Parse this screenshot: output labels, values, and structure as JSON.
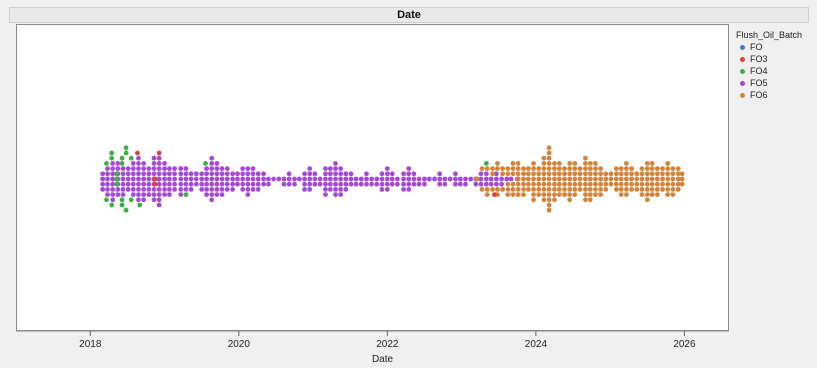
{
  "chart_data": {
    "type": "scatter",
    "title": "Date",
    "xlabel": "Date",
    "ylabel": "",
    "x_ticks": [
      "2018",
      "2020",
      "2022",
      "2024",
      "2026"
    ],
    "xlim": [
      2017.0,
      2026.6
    ],
    "legend": {
      "title": "Flush_Oil_Batch",
      "placement": "right",
      "entries": [
        {
          "name": "FO",
          "color": "#4a78c8"
        },
        {
          "name": "FO3",
          "color": "#e0403a"
        },
        {
          "name": "FO4",
          "color": "#3cb043"
        },
        {
          "name": "FO5",
          "color": "#a64ad6"
        },
        {
          "name": "FO6",
          "color": "#d4843a"
        }
      ]
    },
    "series": [
      {
        "name": "FO4",
        "color": "#3cb043",
        "x_dates": [
          "2018-03-20",
          "2018-04-15",
          "2018-05-10",
          "2018-06-05",
          "2018-06-25",
          "2018-07-20",
          "2018-09-01",
          "2019-04-15",
          "2019-07-20",
          "2023-05-01"
        ],
        "counts": [
          2,
          3,
          3,
          4,
          3,
          2,
          1,
          1,
          1,
          1
        ]
      },
      {
        "name": "FO3",
        "color": "#e0403a",
        "x_dates": [
          "2018-08-20",
          "2018-11-15",
          "2018-12-05",
          "2023-06-10"
        ],
        "counts": [
          1,
          2,
          1,
          1
        ]
      },
      {
        "name": "FO5",
        "color": "#a64ad6",
        "x_dates": [
          "2018-03-01",
          "2018-03-25",
          "2018-04-20",
          "2018-05-15",
          "2018-06-10",
          "2018-07-05",
          "2018-07-30",
          "2018-08-25",
          "2018-09-20",
          "2018-10-15",
          "2018-11-10",
          "2018-12-05",
          "2019-01-01",
          "2019-01-25",
          "2019-02-20",
          "2019-03-20",
          "2019-04-15",
          "2019-05-10",
          "2019-06-05",
          "2019-07-01",
          "2019-07-25",
          "2019-08-20",
          "2019-09-15",
          "2019-10-10",
          "2019-11-05",
          "2019-12-01",
          "2019-12-25",
          "2020-01-20",
          "2020-02-15",
          "2020-03-10",
          "2020-04-05",
          "2020-05-01",
          "2020-05-25",
          "2020-06-20",
          "2020-07-15",
          "2020-08-10",
          "2020-09-05",
          "2020-10-01",
          "2020-10-25",
          "2020-11-20",
          "2020-12-15",
          "2021-01-10",
          "2021-02-05",
          "2021-03-01",
          "2021-03-25",
          "2021-04-20",
          "2021-05-15",
          "2021-06-10",
          "2021-07-05",
          "2021-07-30",
          "2021-08-25",
          "2021-09-20",
          "2021-10-15",
          "2021-11-10",
          "2021-12-05",
          "2022-01-01",
          "2022-01-25",
          "2022-02-20",
          "2022-03-20",
          "2022-04-15",
          "2022-05-10",
          "2022-06-05",
          "2022-07-01",
          "2022-07-25",
          "2022-08-20",
          "2022-09-15",
          "2022-10-10",
          "2022-11-05",
          "2022-12-01",
          "2022-12-25",
          "2023-01-20",
          "2023-02-15",
          "2023-03-10",
          "2023-04-05",
          "2023-05-01",
          "2023-05-25",
          "2023-06-20",
          "2023-07-15",
          "2023-08-10",
          "2023-09-01",
          "2023-10-01"
        ],
        "counts": [
          4,
          6,
          8,
          7,
          6,
          5,
          7,
          9,
          8,
          6,
          9,
          10,
          7,
          6,
          5,
          6,
          5,
          4,
          3,
          4,
          6,
          9,
          7,
          6,
          5,
          4,
          3,
          5,
          6,
          5,
          4,
          3,
          2,
          1,
          1,
          2,
          3,
          2,
          1,
          4,
          5,
          3,
          2,
          6,
          5,
          7,
          6,
          4,
          3,
          2,
          2,
          3,
          2,
          2,
          4,
          5,
          3,
          2,
          4,
          5,
          3,
          2,
          2,
          1,
          1,
          3,
          2,
          1,
          3,
          2,
          2,
          1,
          2,
          3,
          3,
          2,
          3,
          2,
          1,
          1,
          1
        ]
      },
      {
        "name": "FO6",
        "color": "#d4843a",
        "x_dates": [
          "2023-03-15",
          "2023-04-10",
          "2023-05-05",
          "2023-06-01",
          "2023-06-25",
          "2023-07-20",
          "2023-08-15",
          "2023-09-10",
          "2023-10-05",
          "2023-11-01",
          "2023-11-25",
          "2023-12-20",
          "2024-01-15",
          "2024-02-10",
          "2024-03-05",
          "2024-04-01",
          "2024-04-25",
          "2024-05-20",
          "2024-06-15",
          "2024-07-10",
          "2024-08-05",
          "2024-09-01",
          "2024-09-25",
          "2024-10-20",
          "2024-11-15",
          "2024-12-10",
          "2025-01-05",
          "2025-02-01",
          "2025-02-25",
          "2025-03-20",
          "2025-04-15",
          "2025-05-10",
          "2025-06-05",
          "2025-07-01",
          "2025-07-25",
          "2025-08-20",
          "2025-09-15",
          "2025-10-10",
          "2025-11-05",
          "2025-12-01",
          "2025-12-20"
        ],
        "counts": [
          1,
          2,
          3,
          3,
          4,
          3,
          5,
          6,
          7,
          6,
          5,
          8,
          6,
          9,
          13,
          8,
          7,
          6,
          8,
          7,
          5,
          9,
          8,
          7,
          6,
          4,
          3,
          5,
          6,
          7,
          5,
          4,
          6,
          8,
          7,
          6,
          5,
          7,
          6,
          5,
          3
        ]
      }
    ]
  }
}
